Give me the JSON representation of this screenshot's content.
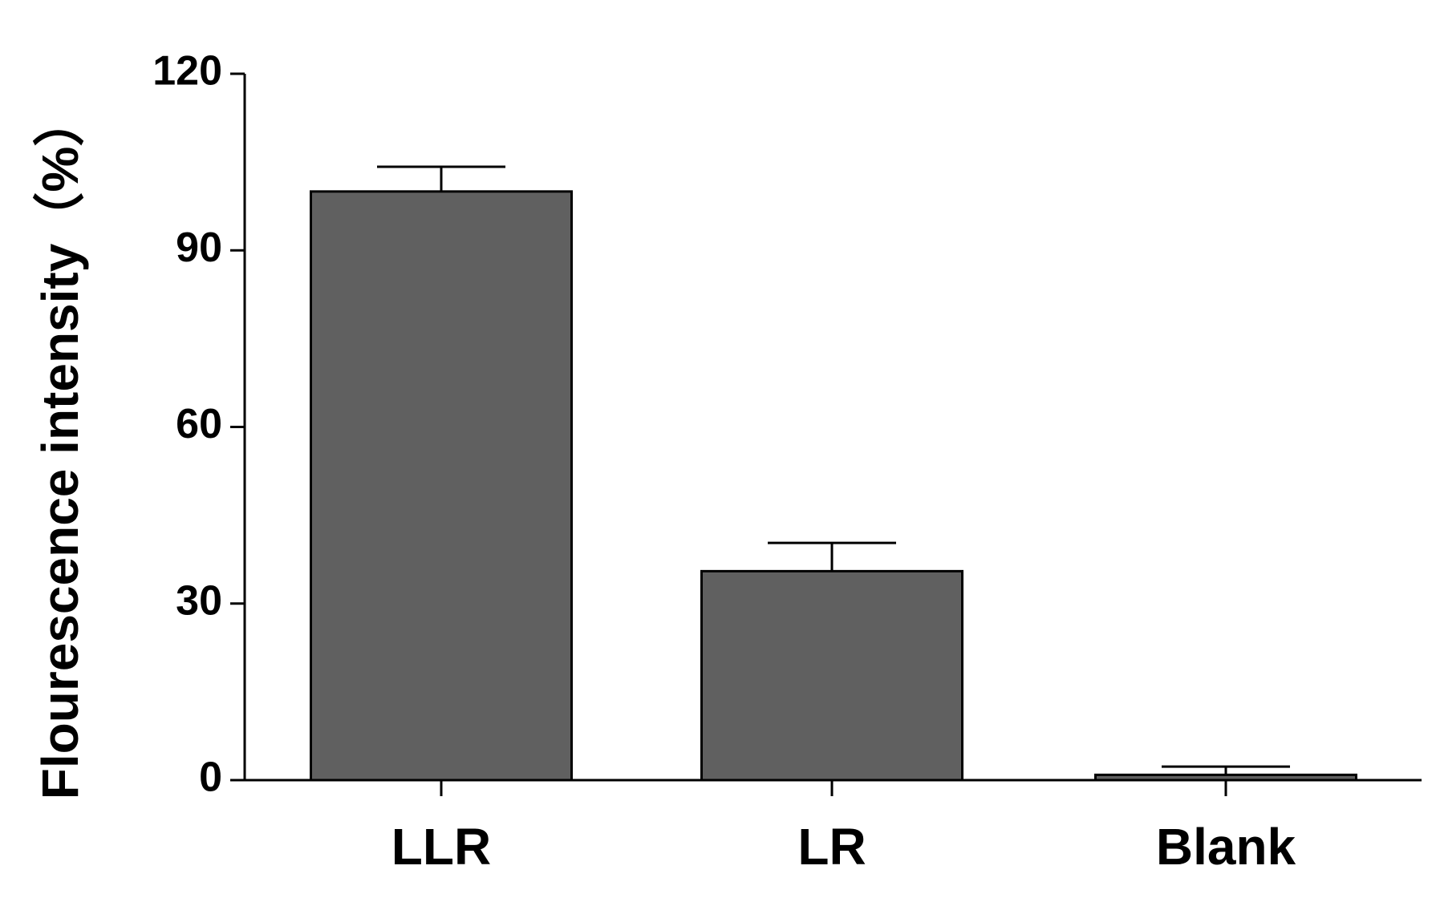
{
  "chart_data": {
    "type": "bar",
    "y_label": "Flourescence intensity（%）",
    "categories": [
      "LLR",
      "LR",
      "Blank"
    ],
    "values": [
      100,
      35.5,
      0.9
    ],
    "errors": [
      4.2,
      4.8,
      1.4
    ],
    "color": "#606060",
    "ylim": [
      0,
      120
    ],
    "yticks": [
      0,
      30,
      60,
      90,
      120
    ],
    "grid": false
  }
}
